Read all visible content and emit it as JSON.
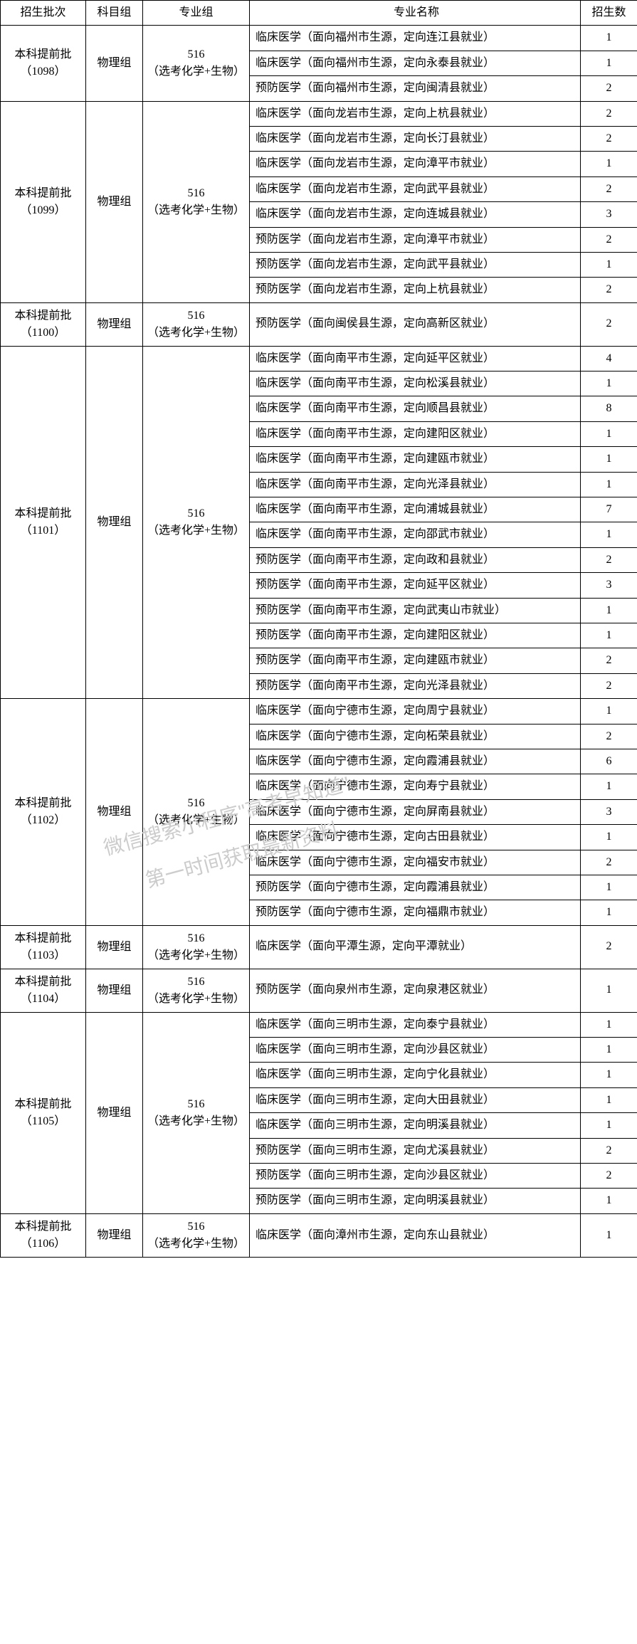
{
  "headers": {
    "batch": "招生批次",
    "subject": "科目组",
    "group": "专业组",
    "major": "专业名称",
    "count": "招生数"
  },
  "subject_label": "物理组",
  "group_label_line1": "516",
  "group_label_line2": "（选考化学+生物）",
  "watermark_line1": "微信搜索小程序\"高考早知道\"",
  "watermark_line2": "第一时间获取最新资料",
  "batches": [
    {
      "batch_line1": "本科提前批",
      "batch_line2": "（1098）",
      "rows": [
        {
          "major": "临床医学（面向福州市生源，定向连江县就业）",
          "count": "1"
        },
        {
          "major": "临床医学（面向福州市生源，定向永泰县就业）",
          "count": "1"
        },
        {
          "major": "预防医学（面向福州市生源，定向闽清县就业）",
          "count": "2"
        }
      ]
    },
    {
      "batch_line1": "本科提前批",
      "batch_line2": "（1099）",
      "rows": [
        {
          "major": "临床医学（面向龙岩市生源，定向上杭县就业）",
          "count": "2"
        },
        {
          "major": "临床医学（面向龙岩市生源，定向长汀县就业）",
          "count": "2"
        },
        {
          "major": "临床医学（面向龙岩市生源，定向漳平市就业）",
          "count": "1"
        },
        {
          "major": "临床医学（面向龙岩市生源，定向武平县就业）",
          "count": "2"
        },
        {
          "major": "临床医学（面向龙岩市生源，定向连城县就业）",
          "count": "3"
        },
        {
          "major": "预防医学（面向龙岩市生源，定向漳平市就业）",
          "count": "2"
        },
        {
          "major": "预防医学（面向龙岩市生源，定向武平县就业）",
          "count": "1"
        },
        {
          "major": "预防医学（面向龙岩市生源，定向上杭县就业）",
          "count": "2"
        }
      ]
    },
    {
      "batch_line1": "本科提前批",
      "batch_line2": "（1100）",
      "rows": [
        {
          "major": "预防医学（面向闽侯县生源，定向高新区就业）",
          "count": "2"
        }
      ]
    },
    {
      "batch_line1": "本科提前批",
      "batch_line2": "（1101）",
      "rows": [
        {
          "major": "临床医学（面向南平市生源，定向延平区就业）",
          "count": "4"
        },
        {
          "major": "临床医学（面向南平市生源，定向松溪县就业）",
          "count": "1"
        },
        {
          "major": "临床医学（面向南平市生源，定向顺昌县就业）",
          "count": "8"
        },
        {
          "major": "临床医学（面向南平市生源，定向建阳区就业）",
          "count": "1"
        },
        {
          "major": "临床医学（面向南平市生源，定向建瓯市就业）",
          "count": "1"
        },
        {
          "major": "临床医学（面向南平市生源，定向光泽县就业）",
          "count": "1"
        },
        {
          "major": "临床医学（面向南平市生源，定向浦城县就业）",
          "count": "7"
        },
        {
          "major": "临床医学（面向南平市生源，定向邵武市就业）",
          "count": "1"
        },
        {
          "major": "预防医学（面向南平市生源，定向政和县就业）",
          "count": "2"
        },
        {
          "major": "预防医学（面向南平市生源，定向延平区就业）",
          "count": "3"
        },
        {
          "major": "预防医学（面向南平市生源，定向武夷山市就业）",
          "count": "1"
        },
        {
          "major": "预防医学（面向南平市生源，定向建阳区就业）",
          "count": "1"
        },
        {
          "major": "预防医学（面向南平市生源，定向建瓯市就业）",
          "count": "2"
        },
        {
          "major": "预防医学（面向南平市生源，定向光泽县就业）",
          "count": "2"
        }
      ]
    },
    {
      "batch_line1": "本科提前批",
      "batch_line2": "（1102）",
      "rows": [
        {
          "major": "临床医学（面向宁德市生源，定向周宁县就业）",
          "count": "1"
        },
        {
          "major": "临床医学（面向宁德市生源，定向柘荣县就业）",
          "count": "2"
        },
        {
          "major": "临床医学（面向宁德市生源，定向霞浦县就业）",
          "count": "6"
        },
        {
          "major": "临床医学（面向宁德市生源，定向寿宁县就业）",
          "count": "1"
        },
        {
          "major": "临床医学（面向宁德市生源，定向屏南县就业）",
          "count": "3"
        },
        {
          "major": "临床医学（面向宁德市生源，定向古田县就业）",
          "count": "1"
        },
        {
          "major": "临床医学（面向宁德市生源，定向福安市就业）",
          "count": "2"
        },
        {
          "major": "预防医学（面向宁德市生源，定向霞浦县就业）",
          "count": "1"
        },
        {
          "major": "预防医学（面向宁德市生源，定向福鼎市就业）",
          "count": "1"
        }
      ]
    },
    {
      "batch_line1": "本科提前批",
      "batch_line2": "（1103）",
      "rows": [
        {
          "major": "临床医学（面向平潭生源，定向平潭就业）",
          "count": "2"
        }
      ]
    },
    {
      "batch_line1": "本科提前批",
      "batch_line2": "（1104）",
      "rows": [
        {
          "major": "预防医学（面向泉州市生源，定向泉港区就业）",
          "count": "1"
        }
      ]
    },
    {
      "batch_line1": "本科提前批",
      "batch_line2": "（1105）",
      "rows": [
        {
          "major": "临床医学（面向三明市生源，定向泰宁县就业）",
          "count": "1"
        },
        {
          "major": "临床医学（面向三明市生源，定向沙县区就业）",
          "count": "1"
        },
        {
          "major": "临床医学（面向三明市生源，定向宁化县就业）",
          "count": "1"
        },
        {
          "major": "临床医学（面向三明市生源，定向大田县就业）",
          "count": "1"
        },
        {
          "major": "临床医学（面向三明市生源，定向明溪县就业）",
          "count": "1"
        },
        {
          "major": "预防医学（面向三明市生源，定向尤溪县就业）",
          "count": "2"
        },
        {
          "major": "预防医学（面向三明市生源，定向沙县区就业）",
          "count": "2"
        },
        {
          "major": "预防医学（面向三明市生源，定向明溪县就业）",
          "count": "1"
        }
      ]
    },
    {
      "batch_line1": "本科提前批",
      "batch_line2": "（1106）",
      "rows": [
        {
          "major": "临床医学（面向漳州市生源，定向东山县就业）",
          "count": "1"
        }
      ]
    }
  ]
}
